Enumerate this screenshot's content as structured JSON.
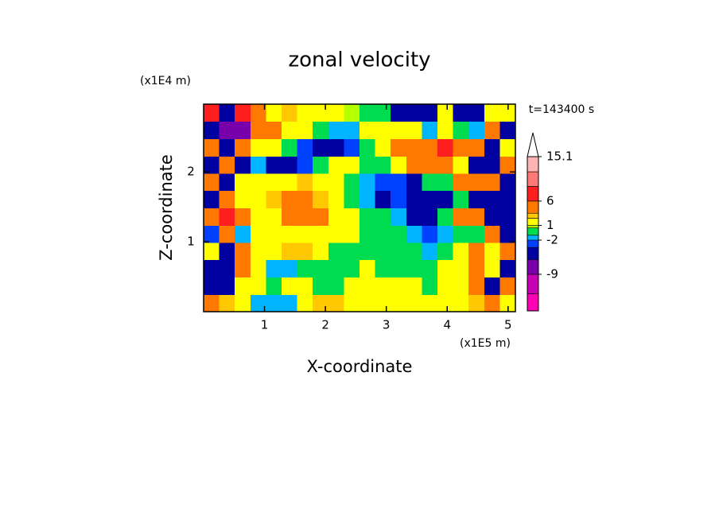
{
  "chart_data": {
    "type": "contour",
    "title": "zonal velocity",
    "annotation": "t=143400 s",
    "xlabel": "X-coordinate",
    "ylabel": "Z-coordinate",
    "x_unit": "(x1E5 m)",
    "y_unit": "(x1E4 m)",
    "xlim": [
      0,
      5.12
    ],
    "ylim": [
      0,
      2.97
    ],
    "xticks": [
      1,
      2,
      3,
      4,
      5
    ],
    "yticks": [
      1,
      2
    ],
    "x": [
      0.13,
      0.38,
      0.64,
      0.9,
      1.15,
      1.41,
      1.66,
      1.92,
      2.18,
      2.43,
      2.69,
      2.94,
      3.2,
      3.46,
      3.71,
      3.97,
      4.22,
      4.48,
      4.74,
      4.99
    ],
    "y": [
      0.12,
      0.37,
      0.62,
      0.87,
      1.11,
      1.36,
      1.61,
      1.86,
      2.1,
      2.35,
      2.6,
      2.85
    ],
    "z": [
      [
        4,
        3,
        2,
        -1.5,
        -1.5,
        -1.5,
        2,
        3,
        3,
        1.5,
        1.5,
        2,
        1.5,
        1.5,
        2,
        2,
        1.5,
        3,
        4,
        2
      ],
      [
        -4,
        -5,
        2,
        2,
        0,
        1.5,
        1.5,
        0,
        0,
        1.5,
        1.5,
        1.5,
        1.5,
        1.5,
        0,
        1.5,
        2,
        4,
        -4,
        4
      ],
      [
        -4,
        -5.5,
        4,
        2,
        -1.5,
        -1.5,
        0,
        0,
        0,
        0,
        1.5,
        0,
        0,
        0,
        0,
        1.5,
        2,
        4,
        2,
        -4
      ],
      [
        2,
        -4,
        4,
        2,
        2,
        3,
        3,
        2,
        0,
        0,
        0,
        0,
        0,
        0,
        -1.5,
        0,
        2,
        4,
        2,
        4
      ],
      [
        -3,
        5,
        -1.5,
        2,
        2,
        2,
        2,
        1.5,
        2,
        1.5,
        0,
        0,
        0,
        -1.5,
        -3,
        -1.5,
        0,
        0,
        4,
        -4
      ],
      [
        4,
        8,
        4,
        2,
        2,
        4,
        5,
        4,
        2,
        1.5,
        0,
        0,
        -1.5,
        -4,
        -4,
        0,
        4,
        4,
        -4,
        -5
      ],
      [
        -4,
        4,
        2,
        2,
        3,
        4,
        4,
        3,
        2,
        0,
        -2,
        -5,
        -3,
        -4,
        -5.5,
        -4,
        0,
        -5,
        -4,
        -4
      ],
      [
        4,
        -4,
        2,
        2,
        2,
        2,
        3,
        2,
        2,
        0,
        -1.5,
        -3,
        -3,
        -5,
        0,
        0,
        4,
        4,
        4,
        -4
      ],
      [
        -4,
        4,
        -5,
        -1.5,
        -5,
        -5,
        -3,
        0,
        1.5,
        2,
        0,
        0,
        2,
        4,
        4,
        4,
        2,
        -4,
        -5,
        4
      ],
      [
        4,
        -5,
        4,
        2,
        1.5,
        0,
        -3,
        -5,
        -5,
        -3,
        0,
        2,
        4,
        4,
        5,
        7,
        5,
        4,
        -4,
        2
      ],
      [
        -4,
        -9,
        -7,
        4,
        4,
        2,
        1.5,
        0,
        -1.5,
        -2,
        2,
        1.5,
        2,
        2,
        -1.5,
        2,
        0,
        -1.5,
        4,
        -4
      ],
      [
        6,
        -4,
        6,
        5,
        2,
        3,
        2,
        2,
        1.5,
        0.5,
        -1,
        0,
        -5,
        -4,
        -5,
        1,
        -5,
        -5,
        2,
        1
      ]
    ],
    "levels": [
      -16.5,
      -13,
      -9,
      -6,
      -3.5,
      -2,
      -1,
      0.5,
      1,
      2.5,
      3.5,
      6,
      9,
      12,
      15.1
    ],
    "colors": [
      "#ff00b4",
      "#c800b4",
      "#7800aa",
      "#0000a0",
      "#0040ff",
      "#00b4ff",
      "#00dc50",
      "#b4ff00",
      "#ffff00",
      "#ffc800",
      "#ff7800",
      "#ff1e1e",
      "#ff7878",
      "#ffb4b4"
    ],
    "colorbar_ticks": [
      15.1,
      6,
      1,
      -2,
      -9
    ],
    "extend_max": true
  }
}
